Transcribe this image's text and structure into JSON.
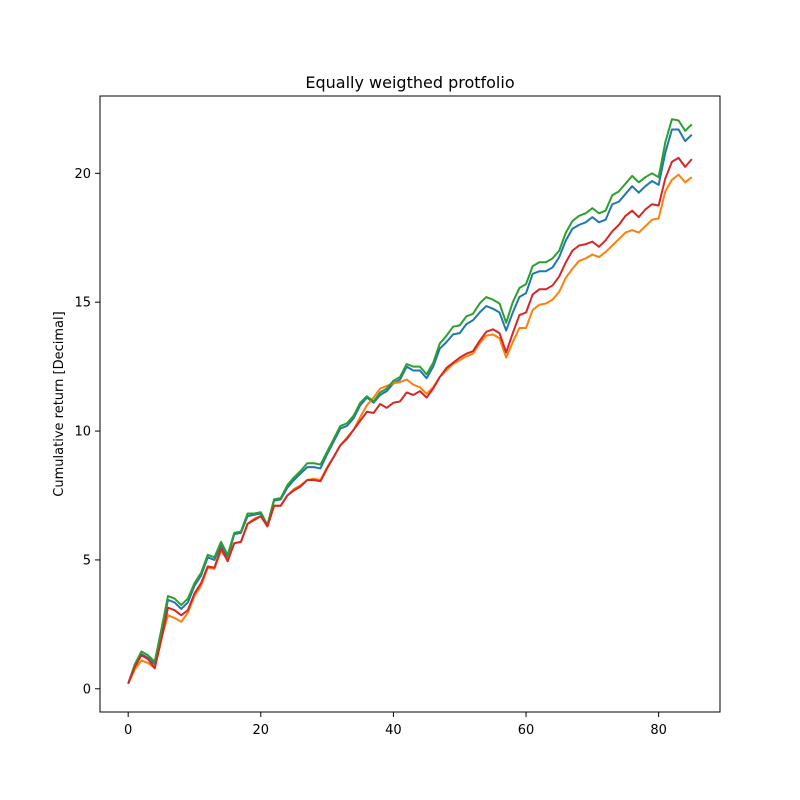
{
  "chart_data": {
    "type": "line",
    "title": "Equally weigthed protfolio",
    "xlabel": "",
    "ylabel": "Cumulative return [Decimal]",
    "xlim": [
      -4.25,
      89.25
    ],
    "ylim": [
      -0.9,
      23.0
    ],
    "xticks": [
      0,
      20,
      40,
      60,
      80
    ],
    "yticks": [
      0,
      5,
      10,
      15,
      20
    ],
    "grid": false,
    "x_start": 0,
    "series": [
      {
        "color": "#1f77b4",
        "values": [
          0.2,
          0.9,
          1.35,
          1.2,
          0.95,
          2.2,
          3.45,
          3.35,
          3.1,
          3.35,
          4.0,
          4.4,
          5.1,
          5.0,
          5.6,
          5.1,
          6.0,
          6.05,
          6.7,
          6.75,
          6.8,
          6.35,
          7.3,
          7.35,
          7.8,
          8.1,
          8.35,
          8.6,
          8.6,
          8.55,
          9.1,
          9.6,
          10.1,
          10.2,
          10.5,
          11.0,
          11.3,
          11.1,
          11.4,
          11.55,
          11.85,
          12.0,
          12.5,
          12.35,
          12.35,
          12.05,
          12.5,
          13.2,
          13.45,
          13.75,
          13.8,
          14.15,
          14.3,
          14.6,
          14.85,
          14.75,
          14.6,
          13.9,
          14.6,
          15.2,
          15.35,
          16.1,
          16.2,
          16.2,
          16.35,
          16.75,
          17.4,
          17.85,
          18.0,
          18.1,
          18.3,
          18.1,
          18.2,
          18.8,
          18.9,
          19.2,
          19.5,
          19.25,
          19.5,
          19.7,
          19.55,
          20.8,
          21.7,
          21.7,
          21.25,
          21.5
        ]
      },
      {
        "color": "#ff7f0e",
        "values": [
          0.2,
          0.75,
          1.1,
          1.0,
          0.8,
          1.95,
          2.85,
          2.75,
          2.6,
          2.95,
          3.6,
          4.0,
          4.7,
          4.65,
          5.35,
          5.0,
          5.65,
          5.7,
          6.4,
          6.6,
          6.7,
          6.3,
          7.1,
          7.1,
          7.5,
          7.75,
          7.9,
          8.1,
          8.15,
          8.1,
          8.6,
          9.0,
          9.45,
          9.75,
          10.05,
          10.55,
          11.0,
          11.3,
          11.65,
          11.75,
          11.85,
          11.9,
          12.0,
          11.8,
          11.7,
          11.45,
          11.7,
          12.1,
          12.35,
          12.6,
          12.75,
          12.9,
          13.0,
          13.4,
          13.7,
          13.75,
          13.6,
          12.85,
          13.45,
          14.0,
          14.0,
          14.7,
          14.9,
          14.95,
          15.1,
          15.4,
          15.95,
          16.3,
          16.6,
          16.7,
          16.85,
          16.75,
          16.95,
          17.2,
          17.45,
          17.7,
          17.8,
          17.7,
          17.95,
          18.2,
          18.25,
          19.3,
          19.75,
          19.95,
          19.65,
          19.85
        ]
      },
      {
        "color": "#2ca02c",
        "values": [
          0.2,
          0.95,
          1.45,
          1.3,
          1.05,
          2.3,
          3.6,
          3.5,
          3.25,
          3.5,
          4.1,
          4.5,
          5.2,
          5.1,
          5.7,
          5.2,
          6.05,
          6.1,
          6.8,
          6.8,
          6.85,
          6.35,
          7.35,
          7.4,
          7.9,
          8.2,
          8.45,
          8.75,
          8.75,
          8.7,
          9.2,
          9.7,
          10.2,
          10.3,
          10.6,
          11.1,
          11.35,
          11.15,
          11.5,
          11.65,
          11.95,
          12.1,
          12.6,
          12.5,
          12.5,
          12.2,
          12.65,
          13.4,
          13.7,
          14.05,
          14.1,
          14.45,
          14.55,
          14.95,
          15.2,
          15.1,
          14.95,
          14.2,
          15.0,
          15.55,
          15.7,
          16.4,
          16.55,
          16.55,
          16.7,
          17.0,
          17.7,
          18.15,
          18.35,
          18.45,
          18.65,
          18.45,
          18.55,
          19.15,
          19.3,
          19.6,
          19.9,
          19.65,
          19.85,
          20.0,
          19.85,
          21.2,
          22.1,
          22.05,
          21.65,
          21.9
        ]
      },
      {
        "color": "#d62728",
        "values": [
          0.2,
          0.85,
          1.3,
          1.15,
          0.8,
          1.9,
          3.15,
          3.05,
          2.85,
          3.05,
          3.7,
          4.1,
          4.75,
          4.7,
          5.45,
          4.95,
          5.65,
          5.7,
          6.4,
          6.55,
          6.7,
          6.3,
          7.1,
          7.1,
          7.5,
          7.7,
          7.85,
          8.1,
          8.1,
          8.05,
          8.55,
          9.0,
          9.45,
          9.7,
          10.05,
          10.4,
          10.75,
          10.7,
          11.05,
          10.9,
          11.1,
          11.15,
          11.5,
          11.4,
          11.55,
          11.3,
          11.65,
          12.1,
          12.45,
          12.65,
          12.85,
          13.0,
          13.1,
          13.5,
          13.85,
          13.95,
          13.8,
          13.05,
          13.8,
          14.5,
          14.6,
          15.3,
          15.5,
          15.5,
          15.65,
          16.0,
          16.55,
          17.0,
          17.2,
          17.25,
          17.35,
          17.15,
          17.4,
          17.75,
          18.0,
          18.35,
          18.55,
          18.3,
          18.6,
          18.8,
          18.75,
          19.8,
          20.45,
          20.6,
          20.25,
          20.55
        ]
      }
    ]
  }
}
